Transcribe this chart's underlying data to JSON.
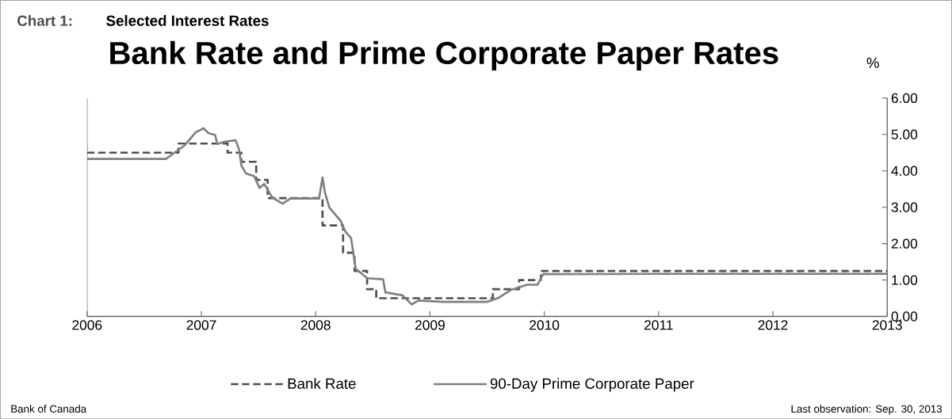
{
  "chart_data": {
    "type": "line",
    "title": "Bank Rate and Prime Corporate Paper Rates",
    "subtitle": "Selected Interest Rates",
    "ylabel": "%",
    "annotations": [
      "Chart 1:",
      "Bank of Canada",
      "Last observation: Sep. 30, 2013"
    ],
    "xlim": [
      2006,
      2013
    ],
    "xticks": [
      2006,
      2007,
      2008,
      2009,
      2010,
      2011,
      2012,
      2013
    ],
    "ylim": [
      0,
      6
    ],
    "yticks": [
      {
        "value": 0,
        "label": "0.00"
      },
      {
        "value": 1,
        "label": "1.00"
      },
      {
        "value": 2,
        "label": "2.00"
      },
      {
        "value": 3,
        "label": "3.00"
      },
      {
        "value": 4,
        "label": "4.00"
      },
      {
        "value": 5,
        "label": "5.00"
      },
      {
        "value": 6,
        "label": "6.00"
      }
    ],
    "legend": "bottom",
    "grid": false,
    "series": [
      {
        "name": "Bank Rate",
        "color": "#505050",
        "line_style": "dashed",
        "x": [
          2006,
          2006.8,
          2006.8,
          2007.23,
          2007.23,
          2007.35,
          2007.35,
          2007.48,
          2007.48,
          2007.58,
          2007.58,
          2008.06,
          2008.06,
          2008.24,
          2008.24,
          2008.34,
          2008.34,
          2008.45,
          2008.45,
          2008.53,
          2008.53,
          2009.55,
          2009.55,
          2009.78,
          2009.78,
          2009.97,
          2009.97,
          2013
        ],
        "values": [
          4.5,
          4.5,
          4.75,
          4.75,
          4.5,
          4.5,
          4.25,
          4.25,
          3.75,
          3.75,
          3.25,
          3.25,
          2.5,
          2.5,
          1.75,
          1.75,
          1.25,
          1.25,
          0.75,
          0.75,
          0.5,
          0.5,
          0.75,
          0.75,
          1.0,
          1.0,
          1.25,
          1.25
        ]
      },
      {
        "name": "90-Day Prime Corporate Paper",
        "color": "#808080",
        "line_style": "solid",
        "x": [
          2006,
          2006.69,
          2006.85,
          2006.95,
          2007.02,
          2007.06,
          2007.12,
          2007.14,
          2007.2,
          2007.3,
          2007.33,
          2007.35,
          2007.39,
          2007.46,
          2007.51,
          2007.55,
          2007.62,
          2007.71,
          2007.78,
          2007.92,
          2008.03,
          2008.06,
          2008.08,
          2008.12,
          2008.22,
          2008.26,
          2008.31,
          2008.35,
          2008.45,
          2008.59,
          2008.61,
          2008.76,
          2008.84,
          2008.9,
          2009.11,
          2009.5,
          2009.6,
          2009.71,
          2009.85,
          2009.94,
          2009.99,
          2011.0,
          2012.0,
          2013
        ],
        "values": [
          4.33,
          4.33,
          4.69,
          5.06,
          5.17,
          5.04,
          4.99,
          4.74,
          4.8,
          4.84,
          4.59,
          4.15,
          3.93,
          3.86,
          3.53,
          3.64,
          3.27,
          3.1,
          3.24,
          3.24,
          3.24,
          3.82,
          3.42,
          2.99,
          2.62,
          2.33,
          2.15,
          1.31,
          1.05,
          1.02,
          0.66,
          0.58,
          0.33,
          0.44,
          0.4,
          0.4,
          0.51,
          0.73,
          0.87,
          0.87,
          1.16,
          1.17,
          1.17,
          1.17
        ]
      }
    ]
  }
}
